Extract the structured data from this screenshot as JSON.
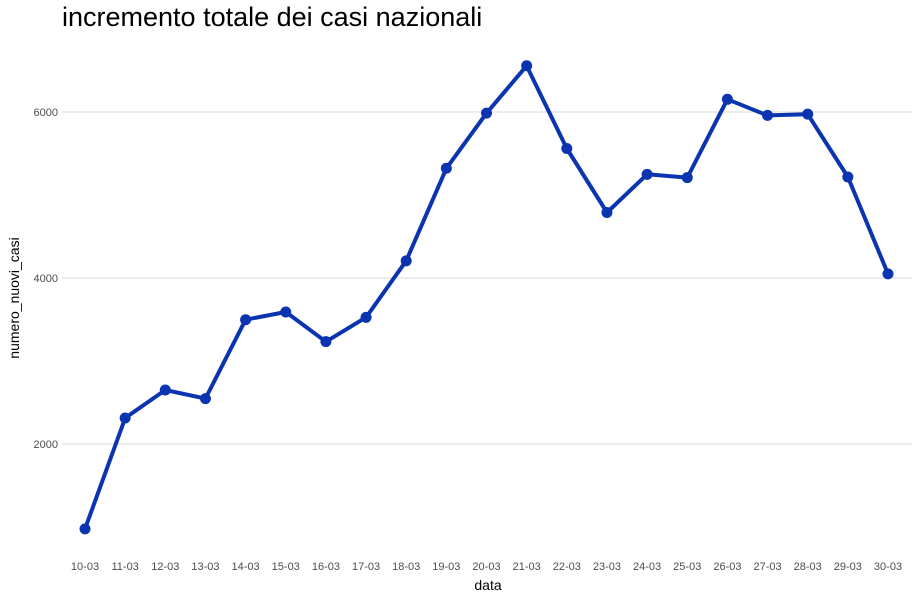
{
  "chart_data": {
    "type": "line",
    "title": "incremento totale dei casi nazionali",
    "xlabel": "data",
    "ylabel": "numero_nuovi_casi",
    "categories": [
      "10-03",
      "11-03",
      "12-03",
      "13-03",
      "14-03",
      "15-03",
      "16-03",
      "17-03",
      "18-03",
      "19-03",
      "20-03",
      "21-03",
      "22-03",
      "23-03",
      "24-03",
      "25-03",
      "26-03",
      "27-03",
      "28-03",
      "29-03",
      "30-03"
    ],
    "values": [
      977,
      2313,
      2651,
      2547,
      3497,
      3590,
      3233,
      3526,
      4207,
      5322,
      5986,
      6557,
      5560,
      4789,
      5249,
      5210,
      6153,
      5959,
      5974,
      5217,
      4050
    ],
    "y_ticks": [
      2000,
      4000,
      6000
    ],
    "ylim": [
      700,
      6800
    ],
    "grid": "horizontal",
    "line_color": "#0b34b0",
    "point_color": "#0b34b0"
  }
}
